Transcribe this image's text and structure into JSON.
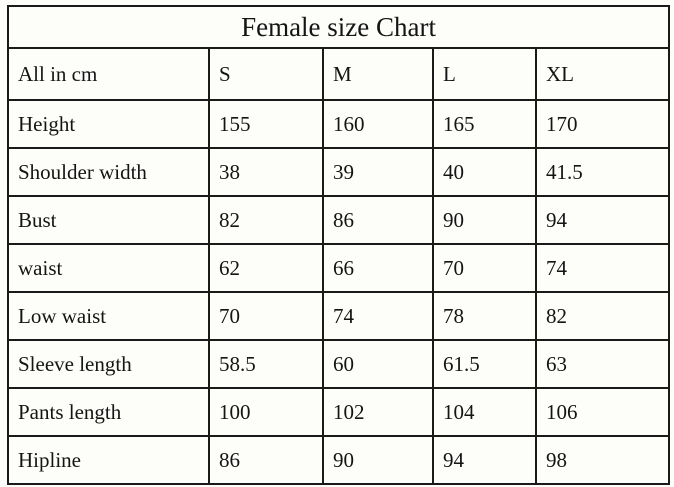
{
  "chart_data": {
    "type": "table",
    "title": "Female size Chart",
    "columns": [
      "All in cm",
      "S",
      "M",
      "L",
      "XL"
    ],
    "rows": [
      {
        "label": "Height",
        "values": [
          "155",
          "160",
          "165",
          "170"
        ]
      },
      {
        "label": "Shoulder width",
        "values": [
          "38",
          "39",
          "40",
          "41.5"
        ]
      },
      {
        "label": "Bust",
        "values": [
          "82",
          "86",
          "90",
          "94"
        ]
      },
      {
        "label": "waist",
        "values": [
          "62",
          "66",
          "70",
          "74"
        ]
      },
      {
        "label": "Low waist",
        "values": [
          "70",
          "74",
          "78",
          "82"
        ]
      },
      {
        "label": "Sleeve length",
        "values": [
          "58.5",
          "60",
          "61.5",
          "63"
        ]
      },
      {
        "label": "Pants length",
        "values": [
          "100",
          "102",
          "104",
          "106"
        ]
      },
      {
        "label": "Hipline",
        "values": [
          "86",
          "90",
          "94",
          "98"
        ]
      }
    ]
  },
  "colors": {
    "border": "#1a1a1a",
    "text": "#141414",
    "background": "#fdfdfa"
  }
}
